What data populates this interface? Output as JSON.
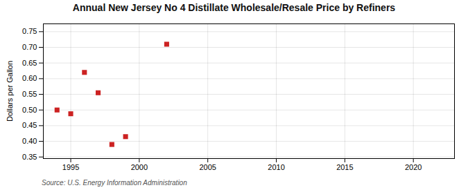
{
  "chart_data": {
    "type": "scatter",
    "title": "Annual New Jersey No 4 Distillate Wholesale/Resale Price by Refiners",
    "ylabel": "Dollars per Gallon",
    "source": "Source: U.S. Energy Information Administration",
    "x": [
      1994,
      1995,
      1996,
      1997,
      1998,
      1999,
      2002
    ],
    "values": [
      0.5,
      0.488,
      0.62,
      0.555,
      0.39,
      0.415,
      0.71
    ],
    "color": "#cc2222",
    "marker": "square",
    "xlim": [
      1993,
      2023
    ],
    "xticks": [
      1995,
      2000,
      2005,
      2010,
      2015,
      2020
    ],
    "ylim": [
      0.345,
      0.775
    ],
    "yticks": [
      0.35,
      {
        "value": 0.4,
        "label": "0.40"
      },
      0.45,
      {
        "value": 0.5,
        "label": "0.50"
      },
      0.55,
      {
        "value": 0.6,
        "label": "0.60"
      },
      0.65,
      {
        "value": 0.7,
        "label": "0.70"
      },
      0.75
    ],
    "grid": true
  }
}
